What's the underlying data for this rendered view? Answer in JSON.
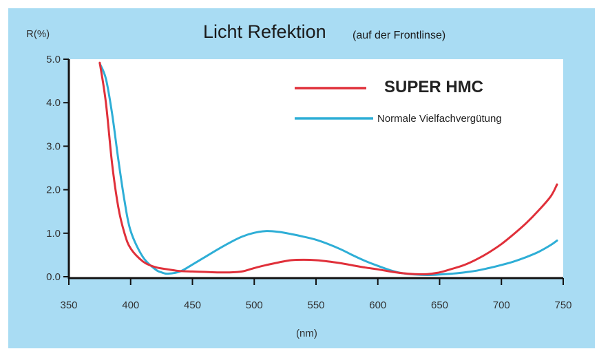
{
  "chart_data": {
    "type": "line",
    "title": "Licht Refektion",
    "subtitle": "(auf der Frontlinse)",
    "ylabel": "R(%)",
    "xlabel": "(nm)",
    "xlim": [
      350,
      750
    ],
    "ylim": [
      0,
      5
    ],
    "x_ticks": [
      350,
      400,
      450,
      500,
      550,
      600,
      650,
      700,
      750
    ],
    "x_tick_labels": [
      "350",
      "400",
      "450",
      "500",
      "550",
      "600",
      "650",
      "700",
      "750"
    ],
    "y_ticks": [
      0,
      1,
      2,
      3,
      4,
      5
    ],
    "y_tick_labels": [
      "0.0",
      "1.0",
      "2.0",
      "3.0",
      "4.0",
      "5.0"
    ],
    "grid": false,
    "legend_position": "top-right",
    "series": [
      {
        "name": "SUPER HMC",
        "color": "#e0303a",
        "points": [
          [
            375,
            4.92
          ],
          [
            380,
            4.0
          ],
          [
            385,
            2.6
          ],
          [
            390,
            1.6
          ],
          [
            395,
            1.0
          ],
          [
            400,
            0.65
          ],
          [
            410,
            0.35
          ],
          [
            420,
            0.22
          ],
          [
            430,
            0.17
          ],
          [
            440,
            0.13
          ],
          [
            450,
            0.12
          ],
          [
            460,
            0.11
          ],
          [
            470,
            0.1
          ],
          [
            480,
            0.1
          ],
          [
            490,
            0.12
          ],
          [
            500,
            0.2
          ],
          [
            510,
            0.27
          ],
          [
            520,
            0.33
          ],
          [
            530,
            0.38
          ],
          [
            540,
            0.39
          ],
          [
            550,
            0.38
          ],
          [
            560,
            0.35
          ],
          [
            570,
            0.31
          ],
          [
            580,
            0.26
          ],
          [
            590,
            0.21
          ],
          [
            600,
            0.17
          ],
          [
            610,
            0.12
          ],
          [
            620,
            0.08
          ],
          [
            630,
            0.06
          ],
          [
            640,
            0.06
          ],
          [
            650,
            0.1
          ],
          [
            660,
            0.18
          ],
          [
            670,
            0.27
          ],
          [
            680,
            0.4
          ],
          [
            690,
            0.56
          ],
          [
            700,
            0.75
          ],
          [
            710,
            0.98
          ],
          [
            720,
            1.23
          ],
          [
            730,
            1.52
          ],
          [
            740,
            1.85
          ],
          [
            745,
            2.12
          ]
        ]
      },
      {
        "name": "Normale Vielfachvergütung",
        "color": "#2eaed6",
        "points": [
          [
            375,
            4.9
          ],
          [
            380,
            4.55
          ],
          [
            385,
            3.75
          ],
          [
            390,
            2.7
          ],
          [
            395,
            1.75
          ],
          [
            400,
            1.05
          ],
          [
            410,
            0.45
          ],
          [
            420,
            0.17
          ],
          [
            425,
            0.1
          ],
          [
            430,
            0.07
          ],
          [
            440,
            0.12
          ],
          [
            450,
            0.28
          ],
          [
            460,
            0.45
          ],
          [
            470,
            0.62
          ],
          [
            480,
            0.78
          ],
          [
            490,
            0.92
          ],
          [
            500,
            1.01
          ],
          [
            510,
            1.05
          ],
          [
            520,
            1.03
          ],
          [
            530,
            0.98
          ],
          [
            540,
            0.92
          ],
          [
            550,
            0.85
          ],
          [
            560,
            0.75
          ],
          [
            570,
            0.63
          ],
          [
            580,
            0.49
          ],
          [
            590,
            0.36
          ],
          [
            600,
            0.25
          ],
          [
            610,
            0.15
          ],
          [
            620,
            0.08
          ],
          [
            630,
            0.05
          ],
          [
            640,
            0.04
          ],
          [
            650,
            0.05
          ],
          [
            660,
            0.07
          ],
          [
            670,
            0.1
          ],
          [
            680,
            0.14
          ],
          [
            690,
            0.2
          ],
          [
            700,
            0.27
          ],
          [
            710,
            0.35
          ],
          [
            720,
            0.45
          ],
          [
            730,
            0.57
          ],
          [
            740,
            0.73
          ],
          [
            745,
            0.83
          ]
        ]
      }
    ]
  }
}
